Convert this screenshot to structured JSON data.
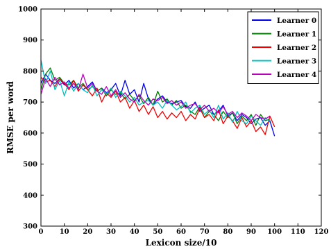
{
  "chart_data": {
    "type": "line",
    "xlabel": "Lexicon size/10",
    "ylabel": "RMSE per word",
    "xlim": [
      0,
      120
    ],
    "ylim": [
      300,
      1000
    ],
    "xticks": [
      0,
      10,
      20,
      30,
      40,
      50,
      60,
      70,
      80,
      90,
      100,
      110,
      120
    ],
    "yticks": [
      300,
      400,
      500,
      600,
      700,
      800,
      900,
      1000
    ],
    "grid": false,
    "legend_position": "top-right",
    "series": [
      {
        "name": "Learner 0",
        "color": "#0000ee",
        "x": [
          0,
          2,
          4,
          6,
          8,
          10,
          12,
          14,
          16,
          18,
          20,
          22,
          24,
          26,
          28,
          30,
          32,
          34,
          36,
          38,
          40,
          42,
          44,
          46,
          48,
          50,
          52,
          54,
          56,
          58,
          60,
          62,
          64,
          66,
          68,
          70,
          72,
          74,
          76,
          78,
          80,
          82,
          84,
          86,
          88,
          90,
          92,
          94,
          96,
          98,
          100
        ],
        "y": [
          760,
          790,
          770,
          760,
          775,
          755,
          770,
          745,
          760,
          740,
          750,
          765,
          735,
          745,
          730,
          740,
          760,
          720,
          770,
          725,
          740,
          700,
          760,
          710,
          690,
          710,
          720,
          700,
          695,
          700,
          705,
          685,
          680,
          700,
          670,
          680,
          690,
          660,
          670,
          690,
          655,
          665,
          640,
          660,
          650,
          630,
          645,
          650,
          625,
          640,
          590
        ]
      },
      {
        "name": "Learner 1",
        "color": "#007a00",
        "x": [
          0,
          2,
          4,
          6,
          8,
          10,
          12,
          14,
          16,
          18,
          20,
          22,
          24,
          26,
          28,
          30,
          32,
          34,
          36,
          38,
          40,
          42,
          44,
          46,
          48,
          50,
          52,
          54,
          56,
          58,
          60,
          62,
          64,
          66,
          68,
          70,
          72,
          74,
          76,
          78,
          80,
          82,
          84,
          86,
          88,
          90,
          92,
          94,
          96,
          98
        ],
        "y": [
          740,
          790,
          810,
          770,
          780,
          760,
          755,
          770,
          745,
          760,
          740,
          750,
          735,
          745,
          720,
          740,
          725,
          730,
          710,
          725,
          705,
          720,
          695,
          715,
          690,
          735,
          700,
          710,
          690,
          705,
          680,
          690,
          670,
          660,
          685,
          650,
          670,
          660,
          640,
          670,
          650,
          665,
          630,
          655,
          640,
          660,
          625,
          660,
          640,
          645
        ]
      },
      {
        "name": "Learner 2",
        "color": "#ee0000",
        "x": [
          0,
          2,
          4,
          6,
          8,
          10,
          12,
          14,
          16,
          18,
          20,
          22,
          24,
          26,
          28,
          30,
          32,
          34,
          36,
          38,
          40,
          42,
          44,
          46,
          48,
          50,
          52,
          54,
          56,
          58,
          60,
          62,
          64,
          66,
          68,
          70,
          72,
          74,
          76,
          78,
          80,
          82,
          84,
          86,
          88,
          90,
          92,
          94,
          96,
          98,
          100
        ],
        "y": [
          780,
          765,
          770,
          750,
          775,
          760,
          740,
          770,
          735,
          755,
          740,
          720,
          745,
          700,
          730,
          715,
          735,
          700,
          715,
          680,
          705,
          670,
          690,
          660,
          685,
          650,
          670,
          645,
          665,
          650,
          670,
          640,
          660,
          645,
          680,
          650,
          660,
          640,
          675,
          630,
          655,
          640,
          615,
          650,
          620,
          640,
          605,
          620,
          595,
          655,
          620
        ]
      },
      {
        "name": "Learner 3",
        "color": "#00c0c0",
        "x": [
          0,
          2,
          4,
          6,
          8,
          10,
          12,
          14,
          16,
          18,
          20,
          22,
          24,
          26,
          28,
          30,
          32,
          34,
          36,
          38,
          40,
          42,
          44,
          46,
          48,
          50,
          52,
          54,
          56,
          58,
          60,
          62,
          64,
          66,
          68,
          70,
          72,
          74,
          76,
          78,
          80,
          82,
          84,
          86,
          88,
          90,
          92,
          94,
          96,
          98
        ],
        "y": [
          835,
          760,
          800,
          740,
          770,
          720,
          765,
          735,
          760,
          740,
          730,
          755,
          720,
          740,
          725,
          745,
          715,
          735,
          720,
          700,
          715,
          690,
          700,
          705,
          690,
          700,
          680,
          705,
          690,
          675,
          685,
          700,
          665,
          680,
          690,
          660,
          675,
          650,
          690,
          645,
          665,
          635,
          670,
          640,
          630,
          655,
          640,
          625,
          650,
          635
        ]
      },
      {
        "name": "Learner 4",
        "color": "#bb00bb",
        "x": [
          0,
          2,
          4,
          6,
          8,
          10,
          12,
          14,
          16,
          18,
          20,
          22,
          24,
          26,
          28,
          30,
          32,
          34,
          36,
          38,
          40,
          42,
          44,
          46,
          48,
          50,
          52,
          54,
          56,
          58,
          60,
          62,
          64,
          66,
          68,
          70,
          72,
          74,
          76,
          78,
          80,
          82,
          84,
          86,
          88,
          90,
          92,
          94,
          96,
          98
        ],
        "y": [
          725,
          775,
          750,
          780,
          755,
          765,
          745,
          760,
          740,
          790,
          745,
          760,
          735,
          725,
          750,
          720,
          740,
          715,
          730,
          710,
          700,
          725,
          705,
          690,
          710,
          705,
          715,
          695,
          705,
          690,
          700,
          680,
          690,
          695,
          675,
          690,
          670,
          680,
          665,
          685,
          660,
          670,
          650,
          665,
          655,
          640,
          660,
          650,
          645,
          655
        ]
      }
    ]
  }
}
